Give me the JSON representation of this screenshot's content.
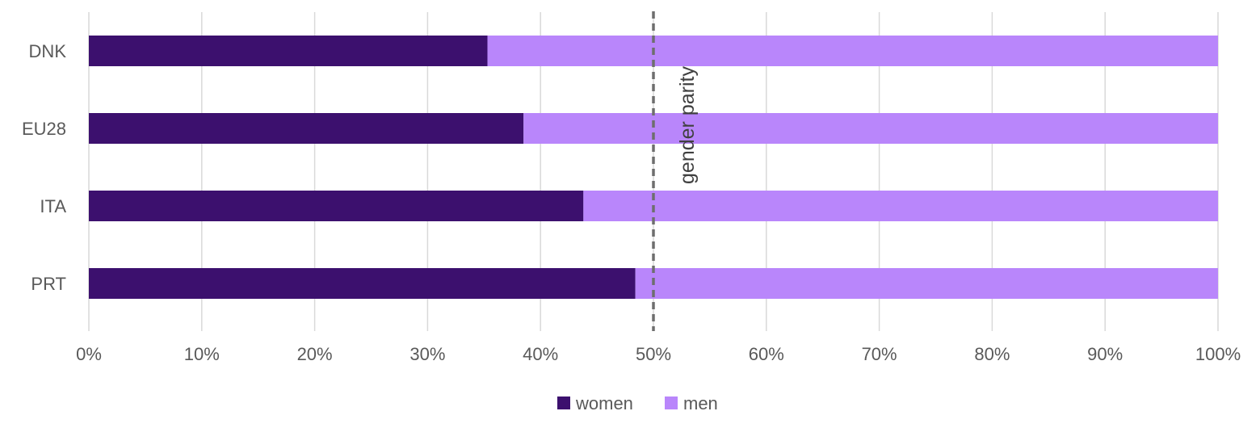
{
  "chart_data": {
    "type": "bar",
    "orientation": "horizontal",
    "stacked": true,
    "percent_stacked": true,
    "title": "",
    "xlabel": "",
    "ylabel": "",
    "categories": [
      "DNK",
      "EU28",
      "ITA",
      "PRT"
    ],
    "series": [
      {
        "name": "women",
        "values": [
          35.3,
          38.5,
          43.8,
          48.4
        ],
        "color": "#3c106e"
      },
      {
        "name": "men",
        "values": [
          64.7,
          61.5,
          56.2,
          51.6
        ],
        "color": "#b986fb"
      }
    ],
    "xlim": [
      0,
      100
    ],
    "x_ticks": [
      "0%",
      "10%",
      "20%",
      "30%",
      "40%",
      "50%",
      "60%",
      "70%",
      "80%",
      "90%",
      "100%"
    ],
    "grid": true,
    "legend": {
      "position": "bottom",
      "entries": [
        "women",
        "men"
      ]
    },
    "annotations": [
      {
        "type": "reference-line",
        "value": 50,
        "style": "dashed",
        "label": "gender parity",
        "color": "#6e6e6e"
      }
    ],
    "colors": {
      "grid": "#d9d9d9",
      "tick_label": "#595959",
      "reference_line": "#6e6e6e"
    }
  }
}
